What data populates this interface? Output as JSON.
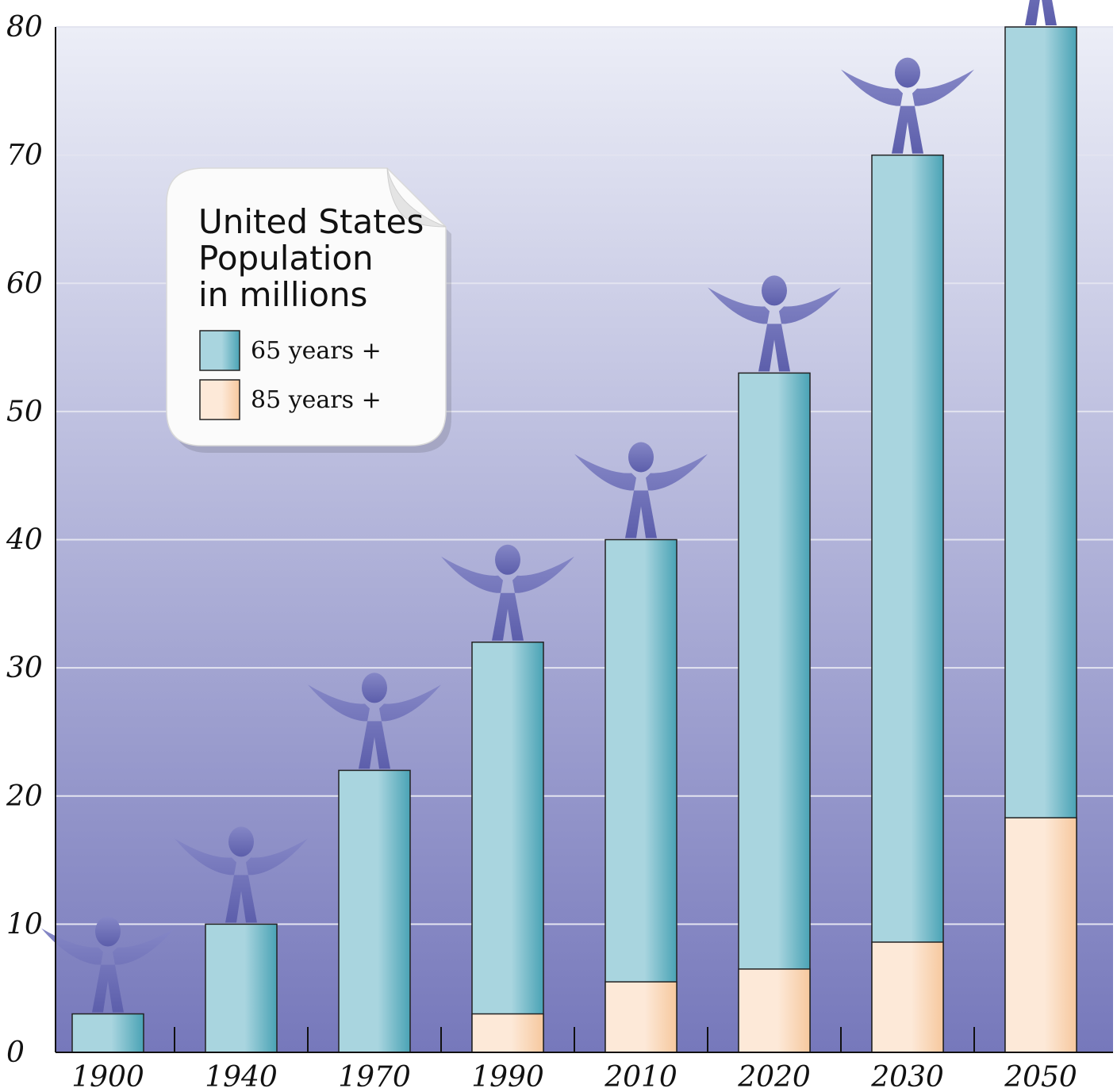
{
  "chart_data": {
    "type": "bar",
    "categories": [
      "1900",
      "1940",
      "1970",
      "1990",
      "2010",
      "2020",
      "2030",
      "2050"
    ],
    "series": [
      {
        "name": "65 years +",
        "values": [
          3,
          10,
          22,
          32,
          40,
          53,
          70,
          80
        ]
      },
      {
        "name": "85 years +",
        "values": [
          0,
          0,
          0,
          3,
          5.5,
          6.5,
          8.6,
          18.3
        ]
      }
    ],
    "overlay": true,
    "title": "United States Population in millions",
    "title_lines": [
      "United States",
      "Population",
      "in millions"
    ],
    "xlabel": "",
    "ylabel": "",
    "ylim": [
      0,
      80
    ],
    "yticks": [
      "0",
      "10",
      "20",
      "30",
      "40",
      "50",
      "60",
      "70",
      "80"
    ],
    "grid": true,
    "legend_placement": "top-left",
    "legend": [
      {
        "label": "65 years +",
        "color": "#8fc8d4"
      },
      {
        "label": "85 years +",
        "color": "#fbd9b8"
      }
    ],
    "colors": {
      "background_top": "#eceef7",
      "background_bottom": "#7678bb",
      "bar_65": "#a9d5df",
      "bar_65_edge": "#4aa3b5",
      "bar_85": "#fde9d8",
      "bar_85_edge": "#f6c89e",
      "figure": "#6668b2"
    }
  }
}
